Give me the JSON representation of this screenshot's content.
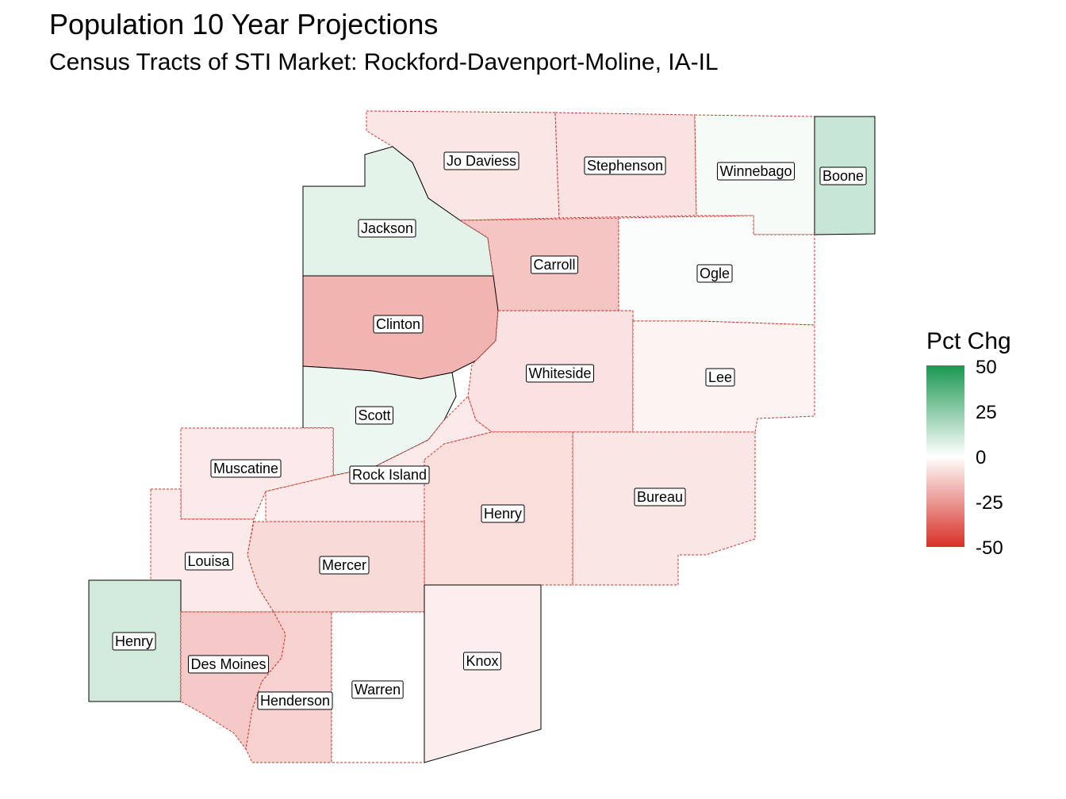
{
  "title": "Population 10 Year Projections",
  "subtitle": "Census Tracts of STI Market: Rockford-Davenport-Moline, IA-IL",
  "legend": {
    "title": "Pct Chg",
    "ticks": [
      "50",
      "25",
      "0",
      "-25",
      "-50"
    ],
    "colors": {
      "high": "#1a9850",
      "mid": "#ffffff",
      "low": "#d73027"
    },
    "range": [
      -50,
      50
    ]
  },
  "counties": [
    {
      "name": "Jo Daviess",
      "pct_chg": -6
    },
    {
      "name": "Stephenson",
      "pct_chg": -7
    },
    {
      "name": "Winnebago",
      "pct_chg": 2
    },
    {
      "name": "Boone",
      "pct_chg": 12
    },
    {
      "name": "Jackson",
      "pct_chg": 6
    },
    {
      "name": "Carroll",
      "pct_chg": -14
    },
    {
      "name": "Ogle",
      "pct_chg": 1
    },
    {
      "name": "Clinton",
      "pct_chg": -18
    },
    {
      "name": "Whiteside",
      "pct_chg": -7
    },
    {
      "name": "Lee",
      "pct_chg": -3
    },
    {
      "name": "Scott",
      "pct_chg": 4
    },
    {
      "name": "Muscatine",
      "pct_chg": -5
    },
    {
      "name": "Rock Island",
      "pct_chg": -5
    },
    {
      "name": "Bureau",
      "pct_chg": -6
    },
    {
      "name": "Henry",
      "pct_chg": -8
    },
    {
      "name": "Louisa",
      "pct_chg": -5
    },
    {
      "name": "Mercer",
      "pct_chg": -9
    },
    {
      "name": "Henry",
      "pct_chg": 10
    },
    {
      "name": "Des Moines",
      "pct_chg": -13
    },
    {
      "name": "Henderson",
      "pct_chg": -11
    },
    {
      "name": "Warren",
      "pct_chg": 0
    },
    {
      "name": "Knox",
      "pct_chg": -4
    }
  ]
}
